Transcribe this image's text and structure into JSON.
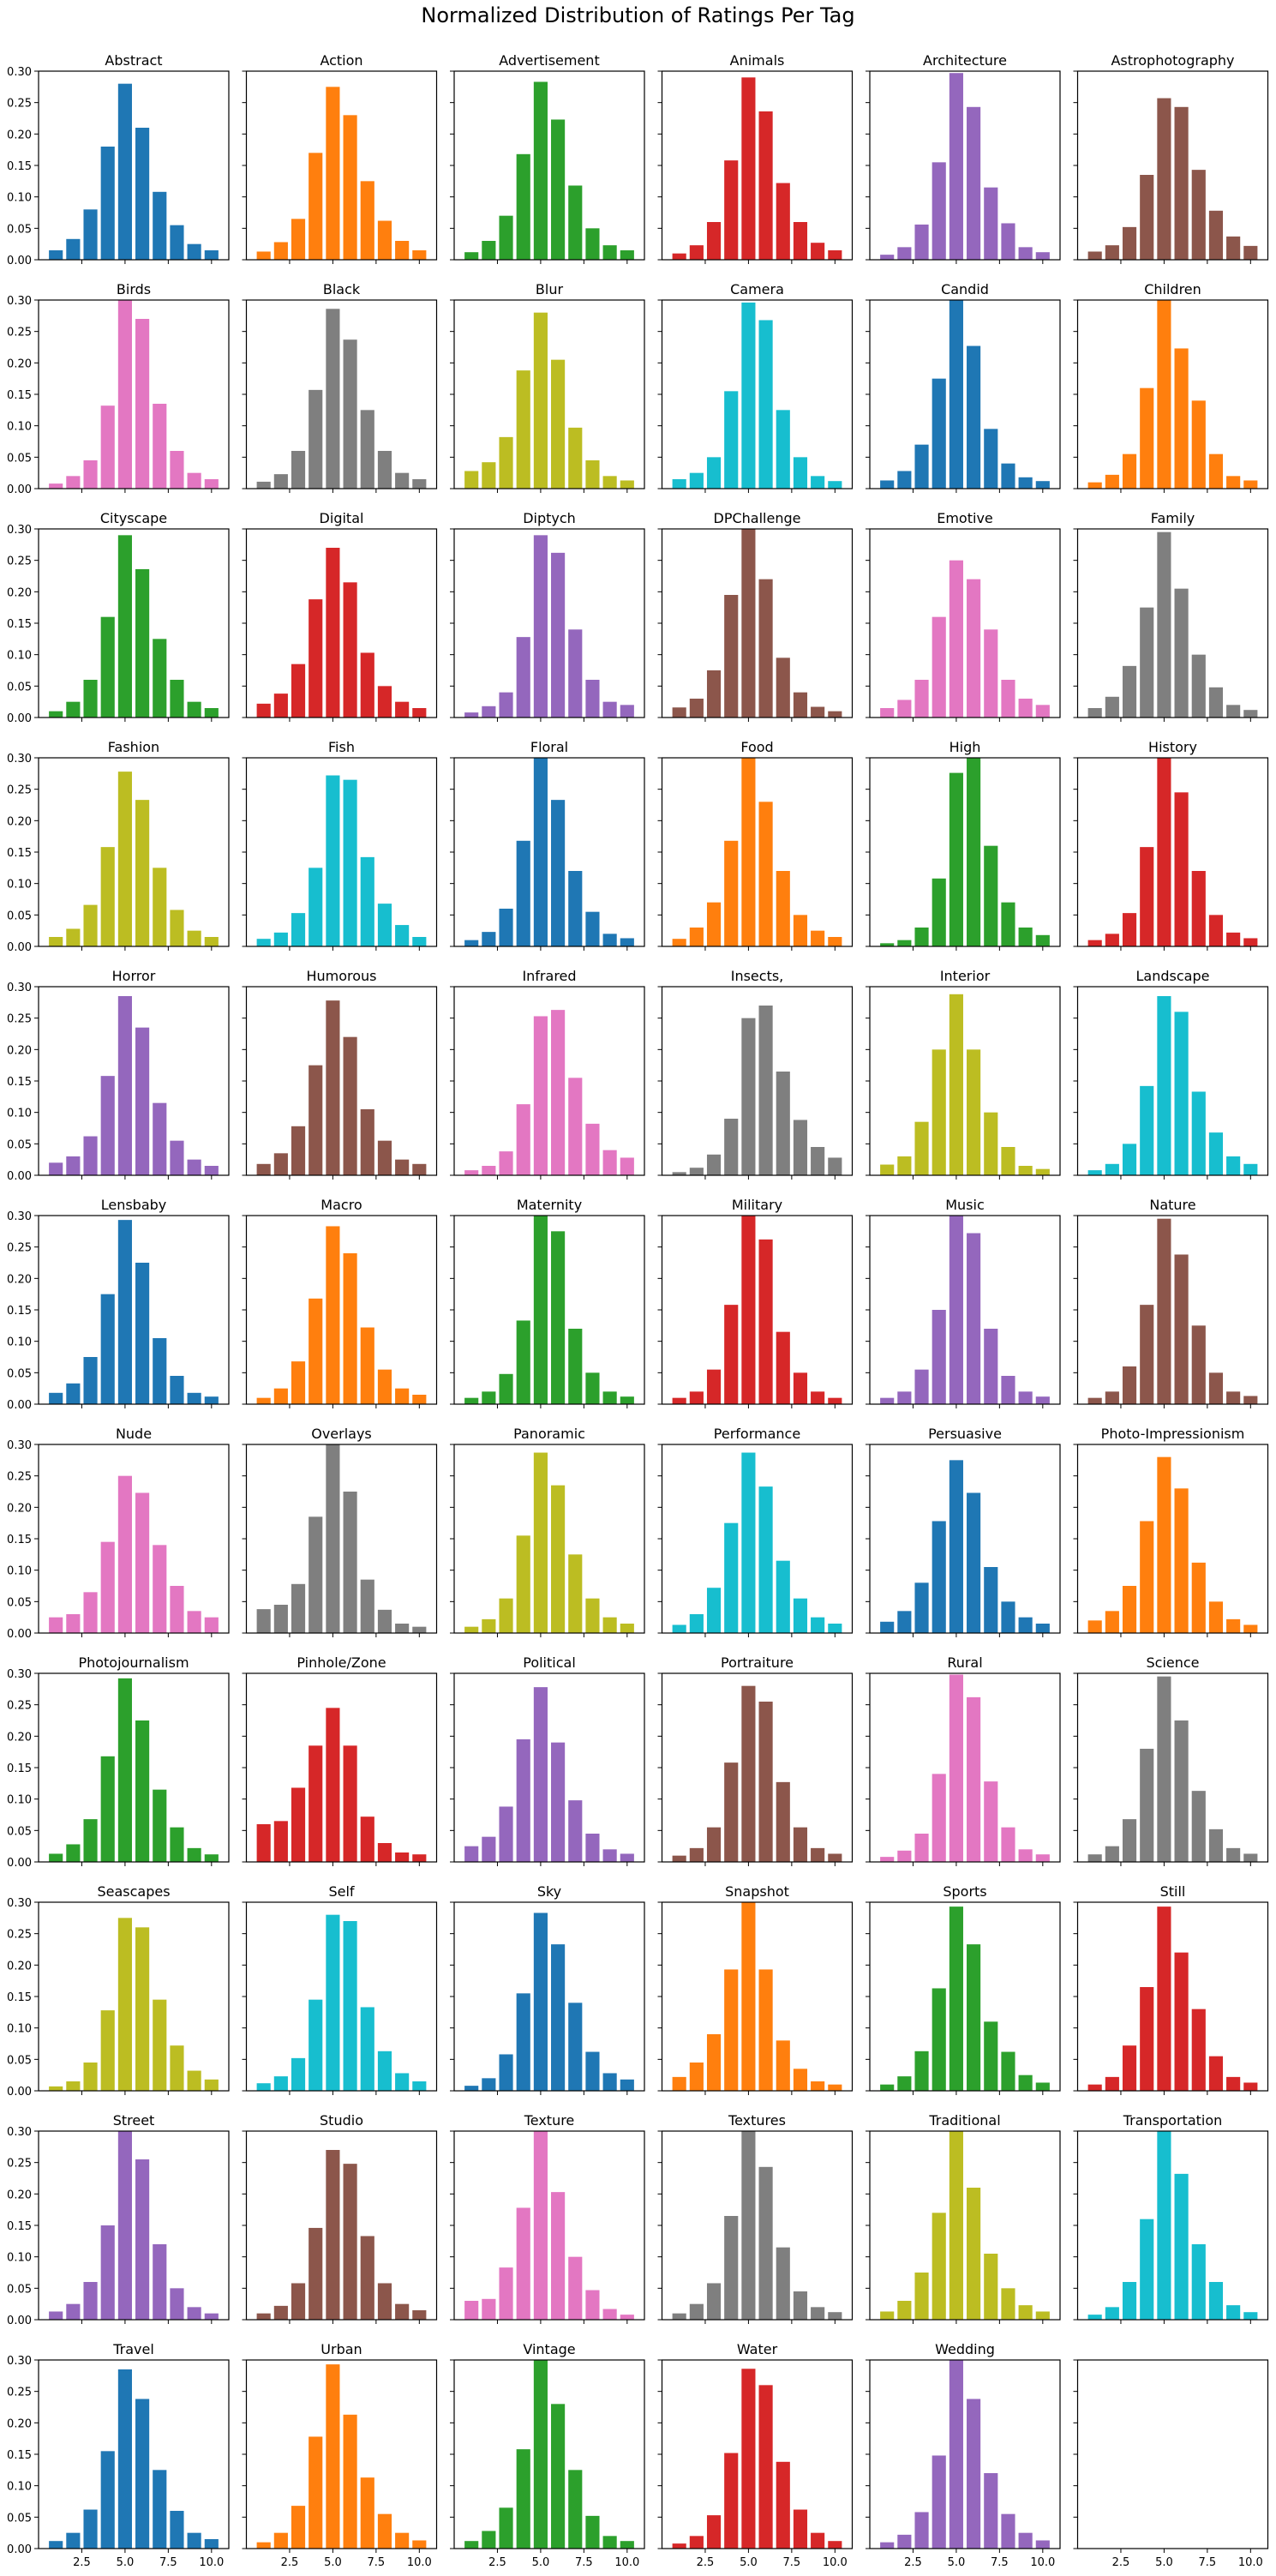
{
  "title": "Normalized Distribution of Ratings Per Tag",
  "colors": [
    "#1f77b4",
    "#ff7f0e",
    "#2ca02c",
    "#d62728",
    "#9467bd",
    "#8c564b",
    "#e377c2",
    "#7f7f7f",
    "#bcbd22",
    "#17becf"
  ],
  "axes": {
    "x_ticks": [
      2.5,
      5.0,
      7.5,
      10.0
    ],
    "x_tick_labels": [
      "2.5",
      "5.0",
      "7.5",
      "10.0"
    ],
    "xlim": [
      0,
      11
    ],
    "y_ticks": [
      0,
      0.05,
      0.1,
      0.15,
      0.2,
      0.25,
      0.3
    ],
    "y_tick_labels": [
      "0.00",
      "0.05",
      "0.10",
      "0.15",
      "0.20",
      "0.25",
      "0.30"
    ],
    "ylim": [
      0,
      0.3
    ],
    "grid": false
  },
  "chart_data": {
    "type": "bar",
    "categories": [
      1,
      2,
      3,
      4,
      5,
      6,
      7,
      8,
      9,
      10
    ],
    "series": [
      {
        "name": "Abstract",
        "values": [
          0.015,
          0.033,
          0.08,
          0.18,
          0.28,
          0.21,
          0.108,
          0.055,
          0.025,
          0.015
        ]
      },
      {
        "name": "Action",
        "values": [
          0.013,
          0.028,
          0.065,
          0.17,
          0.275,
          0.23,
          0.125,
          0.062,
          0.03,
          0.015
        ]
      },
      {
        "name": "Advertisement",
        "values": [
          0.012,
          0.03,
          0.07,
          0.168,
          0.283,
          0.223,
          0.118,
          0.05,
          0.023,
          0.015
        ]
      },
      {
        "name": "Animals",
        "values": [
          0.01,
          0.023,
          0.06,
          0.158,
          0.29,
          0.236,
          0.122,
          0.06,
          0.027,
          0.015
        ]
      },
      {
        "name": "Architecture",
        "values": [
          0.008,
          0.02,
          0.056,
          0.155,
          0.297,
          0.243,
          0.115,
          0.058,
          0.02,
          0.012
        ]
      },
      {
        "name": "Astrophotography",
        "values": [
          0.013,
          0.023,
          0.052,
          0.135,
          0.257,
          0.243,
          0.143,
          0.078,
          0.037,
          0.022
        ]
      },
      {
        "name": "Birds",
        "values": [
          0.008,
          0.02,
          0.045,
          0.132,
          0.3,
          0.27,
          0.135,
          0.06,
          0.025,
          0.015
        ]
      },
      {
        "name": "Black",
        "values": [
          0.011,
          0.023,
          0.06,
          0.157,
          0.286,
          0.237,
          0.125,
          0.06,
          0.025,
          0.015
        ]
      },
      {
        "name": "Blur",
        "values": [
          0.028,
          0.042,
          0.082,
          0.188,
          0.28,
          0.205,
          0.097,
          0.045,
          0.02,
          0.013
        ]
      },
      {
        "name": "Camera",
        "values": [
          0.015,
          0.025,
          0.05,
          0.155,
          0.296,
          0.268,
          0.125,
          0.05,
          0.02,
          0.012
        ]
      },
      {
        "name": "Candid",
        "values": [
          0.013,
          0.028,
          0.07,
          0.175,
          0.303,
          0.227,
          0.095,
          0.04,
          0.018,
          0.012
        ]
      },
      {
        "name": "Children",
        "values": [
          0.01,
          0.022,
          0.055,
          0.16,
          0.302,
          0.223,
          0.14,
          0.055,
          0.02,
          0.013
        ]
      },
      {
        "name": "Cityscape",
        "values": [
          0.01,
          0.025,
          0.06,
          0.16,
          0.29,
          0.236,
          0.125,
          0.06,
          0.025,
          0.015
        ]
      },
      {
        "name": "Digital",
        "values": [
          0.022,
          0.038,
          0.085,
          0.188,
          0.27,
          0.215,
          0.103,
          0.05,
          0.025,
          0.015
        ]
      },
      {
        "name": "Diptych",
        "values": [
          0.008,
          0.018,
          0.04,
          0.128,
          0.29,
          0.262,
          0.14,
          0.06,
          0.025,
          0.02
        ]
      },
      {
        "name": "DPChallenge",
        "values": [
          0.016,
          0.03,
          0.075,
          0.195,
          0.31,
          0.22,
          0.095,
          0.04,
          0.017,
          0.01
        ]
      },
      {
        "name": "Emotive",
        "values": [
          0.015,
          0.028,
          0.06,
          0.16,
          0.25,
          0.22,
          0.14,
          0.06,
          0.03,
          0.02
        ]
      },
      {
        "name": "Family",
        "values": [
          0.015,
          0.033,
          0.082,
          0.175,
          0.295,
          0.205,
          0.1,
          0.048,
          0.02,
          0.012
        ]
      },
      {
        "name": "Fashion",
        "values": [
          0.015,
          0.028,
          0.066,
          0.158,
          0.278,
          0.233,
          0.125,
          0.058,
          0.025,
          0.015
        ]
      },
      {
        "name": "Fish",
        "values": [
          0.012,
          0.022,
          0.053,
          0.125,
          0.272,
          0.265,
          0.142,
          0.068,
          0.034,
          0.015
        ]
      },
      {
        "name": "Floral",
        "values": [
          0.01,
          0.023,
          0.06,
          0.168,
          0.302,
          0.233,
          0.12,
          0.055,
          0.02,
          0.013
        ]
      },
      {
        "name": "Food",
        "values": [
          0.012,
          0.03,
          0.07,
          0.168,
          0.3,
          0.23,
          0.12,
          0.05,
          0.025,
          0.015
        ]
      },
      {
        "name": "High",
        "values": [
          0.005,
          0.01,
          0.03,
          0.108,
          0.276,
          0.3,
          0.16,
          0.07,
          0.03,
          0.018
        ]
      },
      {
        "name": "History",
        "values": [
          0.01,
          0.02,
          0.053,
          0.158,
          0.308,
          0.245,
          0.12,
          0.05,
          0.022,
          0.013
        ]
      },
      {
        "name": "Horror",
        "values": [
          0.02,
          0.03,
          0.062,
          0.158,
          0.285,
          0.235,
          0.115,
          0.055,
          0.025,
          0.015
        ]
      },
      {
        "name": "Humorous",
        "values": [
          0.018,
          0.035,
          0.078,
          0.175,
          0.278,
          0.22,
          0.105,
          0.055,
          0.025,
          0.018
        ]
      },
      {
        "name": "Infrared",
        "values": [
          0.008,
          0.015,
          0.038,
          0.113,
          0.253,
          0.263,
          0.155,
          0.082,
          0.04,
          0.028
        ]
      },
      {
        "name": "Insects,",
        "values": [
          0.005,
          0.012,
          0.033,
          0.09,
          0.25,
          0.27,
          0.165,
          0.088,
          0.045,
          0.028
        ]
      },
      {
        "name": "Interior",
        "values": [
          0.017,
          0.03,
          0.085,
          0.2,
          0.288,
          0.2,
          0.1,
          0.045,
          0.015,
          0.01
        ]
      },
      {
        "name": "Landscape",
        "values": [
          0.008,
          0.018,
          0.05,
          0.142,
          0.285,
          0.26,
          0.133,
          0.068,
          0.03,
          0.018
        ]
      },
      {
        "name": "Lensbaby",
        "values": [
          0.018,
          0.033,
          0.075,
          0.175,
          0.293,
          0.225,
          0.105,
          0.045,
          0.018,
          0.012
        ]
      },
      {
        "name": "Macro",
        "values": [
          0.01,
          0.025,
          0.068,
          0.168,
          0.283,
          0.24,
          0.122,
          0.055,
          0.025,
          0.015
        ]
      },
      {
        "name": "Maternity",
        "values": [
          0.01,
          0.02,
          0.048,
          0.133,
          0.305,
          0.275,
          0.12,
          0.05,
          0.02,
          0.012
        ]
      },
      {
        "name": "Military",
        "values": [
          0.01,
          0.02,
          0.055,
          0.158,
          0.3,
          0.262,
          0.115,
          0.05,
          0.02,
          0.01
        ]
      },
      {
        "name": "Music",
        "values": [
          0.01,
          0.02,
          0.055,
          0.15,
          0.3,
          0.272,
          0.12,
          0.045,
          0.02,
          0.012
        ]
      },
      {
        "name": "Nature",
        "values": [
          0.01,
          0.02,
          0.06,
          0.158,
          0.295,
          0.238,
          0.125,
          0.05,
          0.02,
          0.013
        ]
      },
      {
        "name": "Nude",
        "values": [
          0.025,
          0.03,
          0.065,
          0.145,
          0.25,
          0.223,
          0.14,
          0.075,
          0.035,
          0.025
        ]
      },
      {
        "name": "Overlays",
        "values": [
          0.038,
          0.045,
          0.078,
          0.185,
          0.3,
          0.225,
          0.085,
          0.037,
          0.015,
          0.01
        ]
      },
      {
        "name": "Panoramic",
        "values": [
          0.01,
          0.022,
          0.055,
          0.155,
          0.287,
          0.235,
          0.125,
          0.055,
          0.025,
          0.015
        ]
      },
      {
        "name": "Performance",
        "values": [
          0.013,
          0.03,
          0.072,
          0.175,
          0.287,
          0.233,
          0.115,
          0.055,
          0.025,
          0.015
        ]
      },
      {
        "name": "Persuasive",
        "values": [
          0.018,
          0.035,
          0.08,
          0.178,
          0.275,
          0.223,
          0.105,
          0.05,
          0.025,
          0.015
        ]
      },
      {
        "name": "Photo-Impressionism",
        "values": [
          0.02,
          0.035,
          0.075,
          0.178,
          0.28,
          0.23,
          0.112,
          0.05,
          0.022,
          0.013
        ]
      },
      {
        "name": "Photojournalism",
        "values": [
          0.013,
          0.028,
          0.068,
          0.168,
          0.292,
          0.225,
          0.115,
          0.055,
          0.022,
          0.012
        ]
      },
      {
        "name": "Pinhole/Zone",
        "values": [
          0.06,
          0.065,
          0.118,
          0.185,
          0.245,
          0.185,
          0.072,
          0.03,
          0.015,
          0.012
        ]
      },
      {
        "name": "Political",
        "values": [
          0.025,
          0.04,
          0.088,
          0.195,
          0.278,
          0.19,
          0.098,
          0.045,
          0.02,
          0.013
        ]
      },
      {
        "name": "Portraiture",
        "values": [
          0.01,
          0.022,
          0.055,
          0.158,
          0.28,
          0.255,
          0.127,
          0.055,
          0.022,
          0.013
        ]
      },
      {
        "name": "Rural",
        "values": [
          0.008,
          0.018,
          0.045,
          0.14,
          0.298,
          0.262,
          0.128,
          0.055,
          0.02,
          0.012
        ]
      },
      {
        "name": "Science",
        "values": [
          0.012,
          0.025,
          0.068,
          0.18,
          0.295,
          0.225,
          0.113,
          0.052,
          0.022,
          0.013
        ]
      },
      {
        "name": "Seascapes",
        "values": [
          0.007,
          0.015,
          0.045,
          0.128,
          0.275,
          0.26,
          0.145,
          0.072,
          0.032,
          0.018
        ]
      },
      {
        "name": "Self",
        "values": [
          0.012,
          0.023,
          0.052,
          0.145,
          0.28,
          0.27,
          0.133,
          0.063,
          0.028,
          0.015
        ]
      },
      {
        "name": "Sky",
        "values": [
          0.008,
          0.02,
          0.058,
          0.155,
          0.283,
          0.233,
          0.14,
          0.062,
          0.028,
          0.018
        ]
      },
      {
        "name": "Snapshot",
        "values": [
          0.022,
          0.045,
          0.09,
          0.193,
          0.3,
          0.193,
          0.08,
          0.035,
          0.015,
          0.01
        ]
      },
      {
        "name": "Sports",
        "values": [
          0.01,
          0.023,
          0.063,
          0.163,
          0.293,
          0.233,
          0.11,
          0.062,
          0.025,
          0.013
        ]
      },
      {
        "name": "Still",
        "values": [
          0.01,
          0.022,
          0.072,
          0.165,
          0.293,
          0.22,
          0.13,
          0.055,
          0.022,
          0.013
        ]
      },
      {
        "name": "Street",
        "values": [
          0.013,
          0.025,
          0.06,
          0.15,
          0.3,
          0.255,
          0.12,
          0.05,
          0.02,
          0.01
        ]
      },
      {
        "name": "Studio",
        "values": [
          0.01,
          0.022,
          0.058,
          0.146,
          0.27,
          0.248,
          0.133,
          0.058,
          0.025,
          0.015
        ]
      },
      {
        "name": "Texture",
        "values": [
          0.03,
          0.033,
          0.083,
          0.178,
          0.3,
          0.203,
          0.1,
          0.047,
          0.017,
          0.008
        ]
      },
      {
        "name": "Textures",
        "values": [
          0.01,
          0.025,
          0.058,
          0.165,
          0.3,
          0.243,
          0.115,
          0.045,
          0.02,
          0.012
        ]
      },
      {
        "name": "Traditional",
        "values": [
          0.013,
          0.03,
          0.075,
          0.17,
          0.3,
          0.21,
          0.105,
          0.05,
          0.023,
          0.013
        ]
      },
      {
        "name": "Transportation",
        "values": [
          0.008,
          0.02,
          0.06,
          0.16,
          0.3,
          0.232,
          0.12,
          0.06,
          0.023,
          0.012
        ]
      },
      {
        "name": "Travel",
        "values": [
          0.012,
          0.025,
          0.062,
          0.155,
          0.285,
          0.238,
          0.125,
          0.06,
          0.025,
          0.015
        ]
      },
      {
        "name": "Urban",
        "values": [
          0.01,
          0.025,
          0.068,
          0.178,
          0.293,
          0.213,
          0.113,
          0.055,
          0.025,
          0.013
        ]
      },
      {
        "name": "Vintage",
        "values": [
          0.012,
          0.028,
          0.065,
          0.158,
          0.3,
          0.23,
          0.125,
          0.052,
          0.02,
          0.012
        ]
      },
      {
        "name": "Water",
        "values": [
          0.008,
          0.02,
          0.053,
          0.152,
          0.286,
          0.26,
          0.138,
          0.062,
          0.025,
          0.012
        ]
      },
      {
        "name": "Wedding",
        "values": [
          0.01,
          0.022,
          0.058,
          0.148,
          0.3,
          0.238,
          0.12,
          0.055,
          0.025,
          0.013
        ]
      }
    ]
  }
}
